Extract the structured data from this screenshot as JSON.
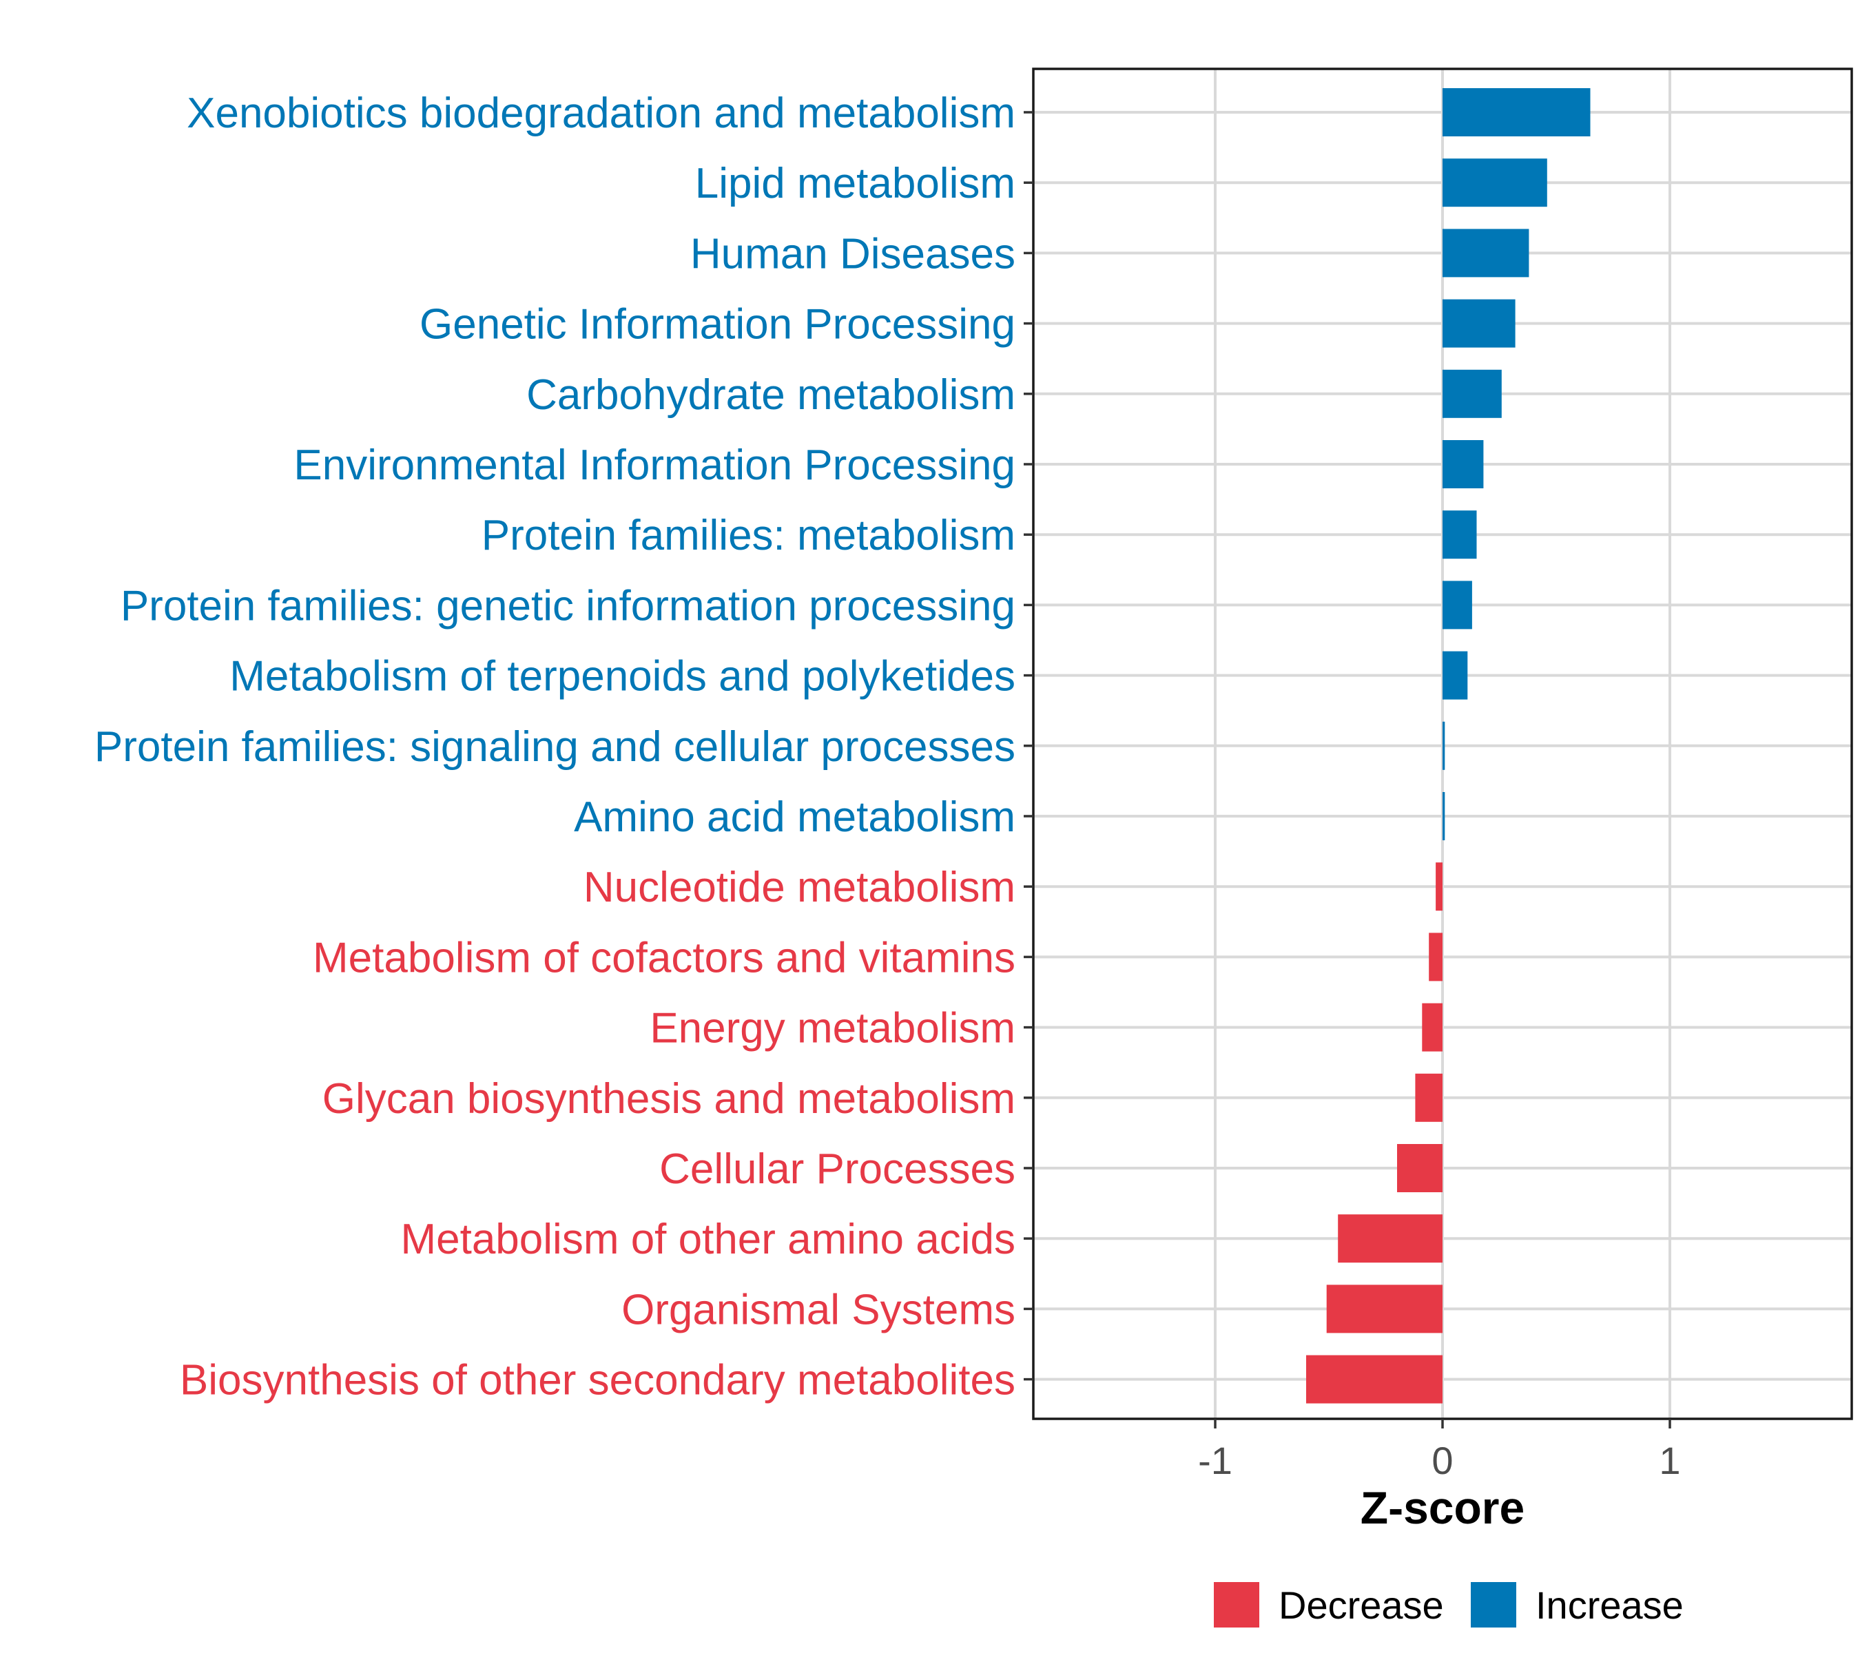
{
  "chart_data": {
    "type": "bar",
    "orientation": "horizontal",
    "title": "",
    "xlabel": "Z-score",
    "ylabel": "",
    "xlim": [
      -1.8,
      1.8
    ],
    "xticks": [
      -1,
      0,
      1
    ],
    "xtick_labels": [
      "-1",
      "0",
      "1"
    ],
    "grid": true,
    "legend_position": "bottom",
    "colors": {
      "Decrease": "#e63946",
      "Increase": "#0077b6"
    },
    "legend": [
      {
        "label": "Decrease",
        "color": "#e63946"
      },
      {
        "label": "Increase",
        "color": "#0077b6"
      }
    ],
    "categories": [
      "Xenobiotics biodegradation and metabolism",
      "Lipid metabolism",
      "Human Diseases",
      "Genetic Information Processing",
      "Carbohydrate metabolism",
      "Environmental Information Processing",
      "Protein families: metabolism",
      "Protein families: genetic information processing",
      "Metabolism of terpenoids and polyketides",
      "Protein families: signaling and cellular processes",
      "Amino acid metabolism",
      "Nucleotide metabolism",
      "Metabolism of cofactors and vitamins",
      "Energy metabolism",
      "Glycan biosynthesis and metabolism",
      "Cellular Processes",
      "Metabolism of other amino acids",
      "Organismal Systems",
      "Biosynthesis of other secondary metabolites"
    ],
    "values": [
      0.65,
      0.46,
      0.38,
      0.32,
      0.26,
      0.18,
      0.15,
      0.13,
      0.11,
      0.01,
      0.01,
      -0.03,
      -0.06,
      -0.09,
      -0.12,
      -0.2,
      -0.46,
      -0.51,
      -0.6
    ],
    "groups": [
      "Increase",
      "Increase",
      "Increase",
      "Increase",
      "Increase",
      "Increase",
      "Increase",
      "Increase",
      "Increase",
      "Increase",
      "Increase",
      "Decrease",
      "Decrease",
      "Decrease",
      "Decrease",
      "Decrease",
      "Decrease",
      "Decrease",
      "Decrease"
    ]
  }
}
